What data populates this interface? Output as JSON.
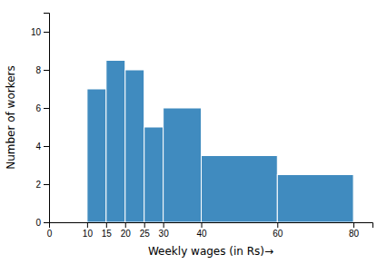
{
  "chart_data": {
    "type": "histogram",
    "bins": [
      10,
      15,
      20,
      25,
      30,
      40,
      60,
      80
    ],
    "values": [
      7,
      8.5,
      8,
      5,
      6,
      3.5,
      2.5
    ],
    "xlabel": "Weekly wages (in Rs)→",
    "ylabel": "Number of workers",
    "xlim": [
      0,
      85
    ],
    "ylim": [
      0,
      11
    ],
    "xticks": [
      0,
      10,
      15,
      20,
      25,
      30,
      40,
      60,
      80
    ],
    "yticks": [
      0,
      2,
      4,
      6,
      8,
      10
    ]
  }
}
